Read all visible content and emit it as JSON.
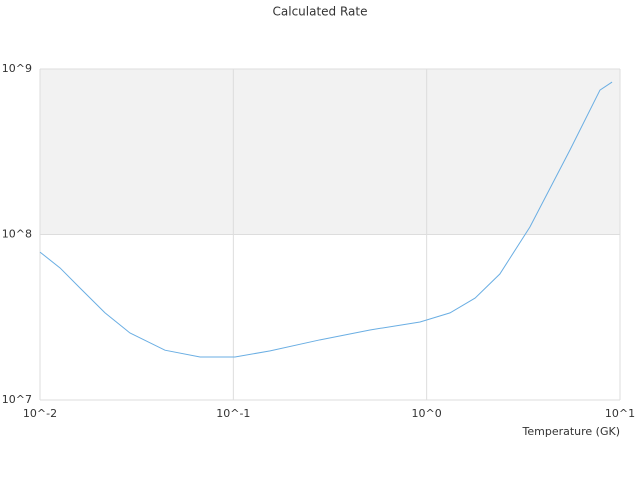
{
  "chart_data": {
    "type": "line",
    "title": "Calculated Rate",
    "x_label": "Temperature (GK)",
    "x": [
      0.01,
      0.0127,
      0.0161,
      0.0217,
      0.0292,
      0.0443,
      0.0673,
      0.102,
      0.155,
      0.281,
      0.509,
      0.924,
      1.32,
      1.78,
      2.39,
      3.42,
      5.51,
      7.88,
      9.1
    ],
    "series": [
      {
        "name": "Rate",
        "color": "#6aaee3",
        "values": [
          78300000,
          62800000,
          47500000,
          33600000,
          25400000,
          20000000,
          18200000,
          18200000,
          19800000,
          23100000,
          26500000,
          29600000,
          33600000,
          41300000,
          57700000,
          111000000,
          324000000,
          746000000,
          834000000
        ]
      }
    ],
    "xlim": [
      0.01,
      10
    ],
    "ylim": [
      10000000,
      1000000000
    ],
    "xticks": [
      {
        "value": 0.01,
        "label": "10^-2"
      },
      {
        "value": 0.1,
        "label": "10^-1"
      },
      {
        "value": 1,
        "label": "10^0"
      },
      {
        "value": 10,
        "label": "10^1"
      }
    ],
    "yticks": [
      {
        "value": 10000000,
        "label": "10^7"
      },
      {
        "value": 100000000,
        "label": "10^8"
      },
      {
        "value": 1000000000,
        "label": "10^9"
      }
    ],
    "xlog": true,
    "ylog": true,
    "grid": true,
    "band_color": "#f2f2f2"
  }
}
